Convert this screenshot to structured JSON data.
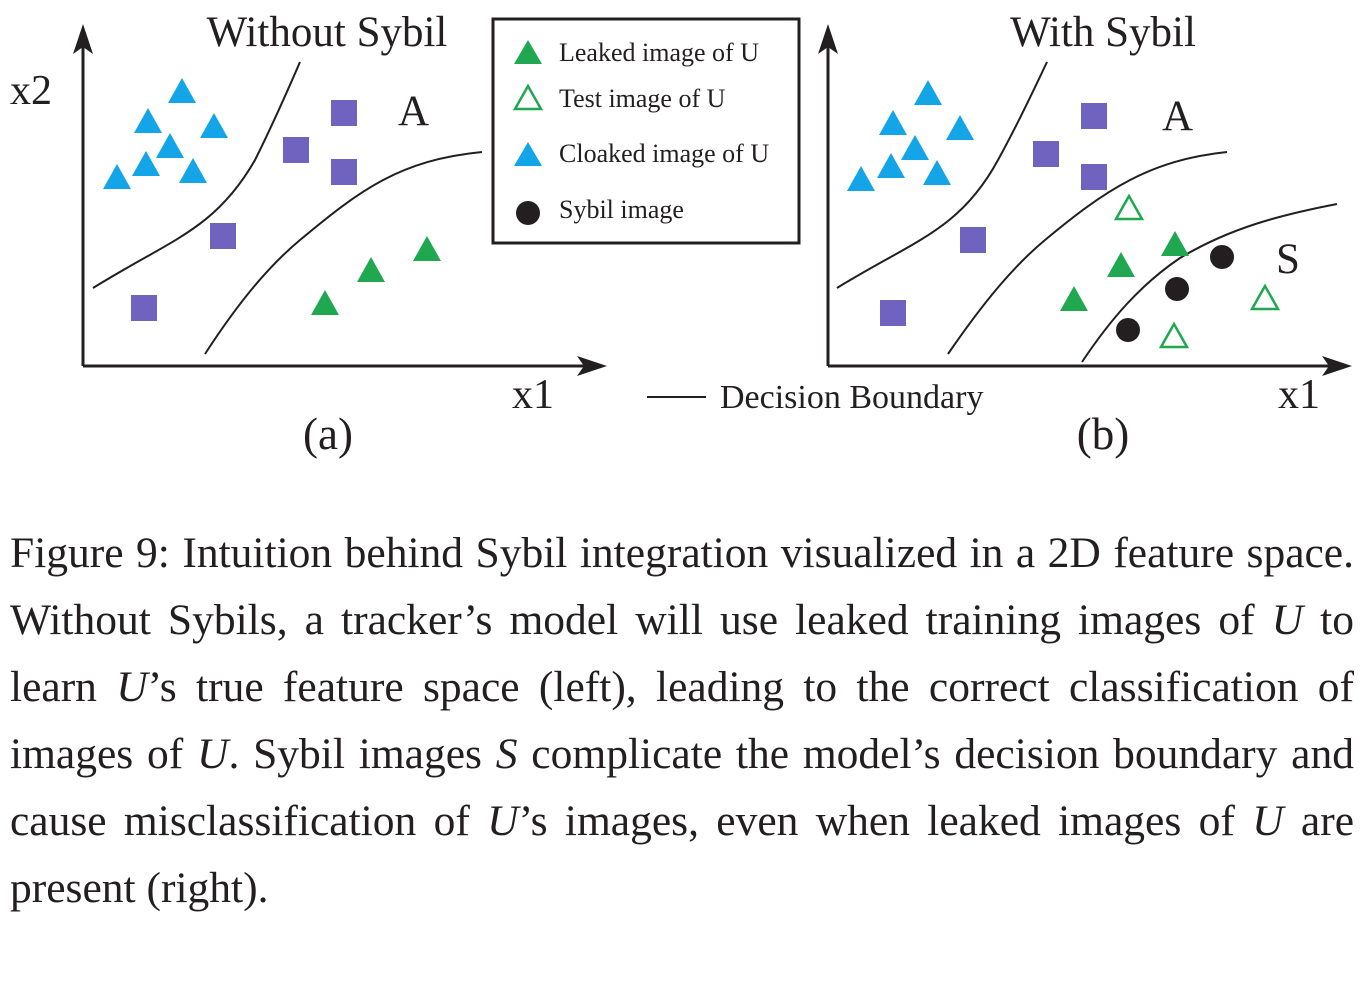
{
  "panels": [
    {
      "id": "a",
      "title": "Without Sybil",
      "x_label": "x1",
      "y_label": "x2",
      "region_labels": [
        "A"
      ],
      "sublabel": "(a)"
    },
    {
      "id": "b",
      "title": "With Sybil",
      "x_label": "x1",
      "region_labels": [
        "A",
        "S"
      ],
      "sublabel": "(b)"
    }
  ],
  "legend": {
    "items": [
      {
        "label": "Leaked image of U",
        "marker": "filled-triangle",
        "color": "#1fa84f"
      },
      {
        "label": "Test image of U",
        "marker": "hollow-triangle",
        "color": "#1fa84f"
      },
      {
        "label": "Cloaked image of U",
        "marker": "filled-triangle",
        "color": "#13a5e8"
      },
      {
        "label": "Sybil image",
        "marker": "filled-circle",
        "color": "#231f20"
      }
    ]
  },
  "boundary_legend": {
    "label": "Decision Boundary"
  },
  "class_a_marker": {
    "marker": "filled-square",
    "color": "#7063c0"
  },
  "caption": {
    "p1": "Figure 9: Intuition behind Sybil integration visualized in a 2D feature space. Without Sybils, a tracker’s model will use leaked training images of ",
    "u1": "U",
    "p2": " to learn ",
    "u2": "U",
    "p3": "’s true feature space (left), leading to the correct classification of images of ",
    "u3": "U",
    "p4": ". Sybil images ",
    "s1": "S",
    "p5": " complicate the model’s decision boundary and cause misclassification of ",
    "u4": "U",
    "p6": "’s images, even when leaked images of ",
    "u5": "U",
    "p7": " are present (right)."
  }
}
